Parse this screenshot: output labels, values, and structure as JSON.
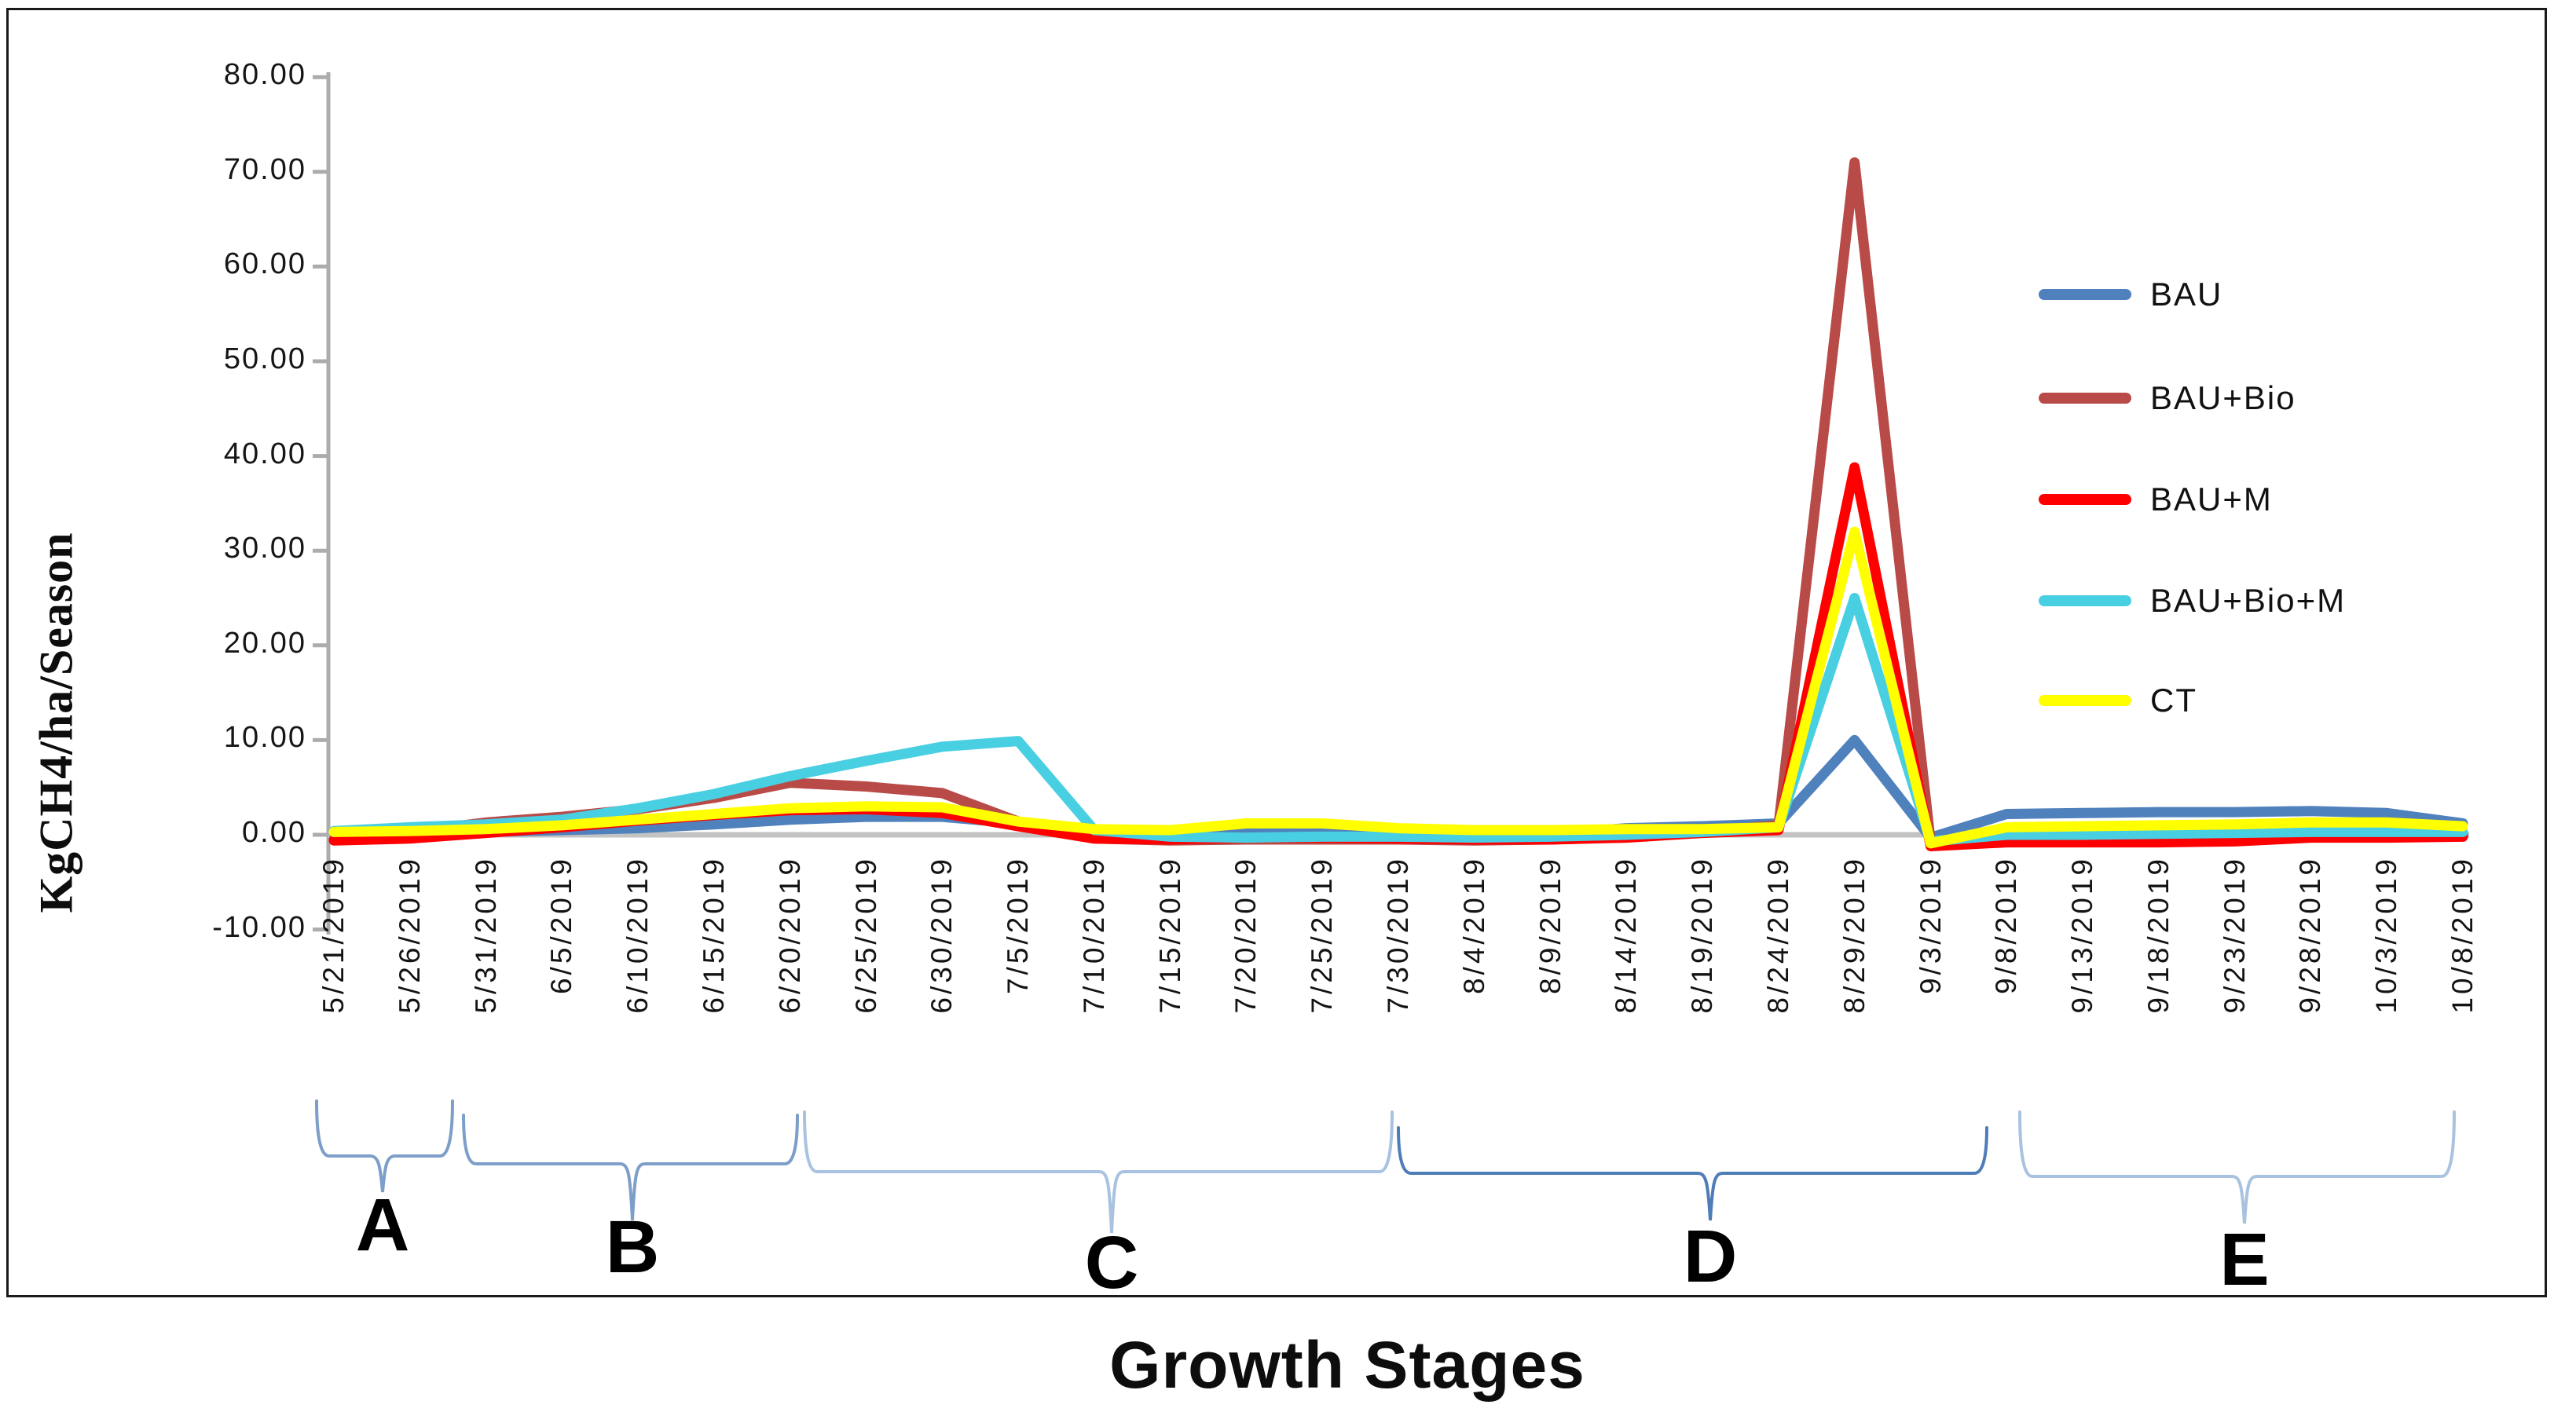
{
  "figure": {
    "x_axis_title": "Growth Stages",
    "y_axis_title": "KgCH4/ha/Season"
  },
  "chart_data": {
    "type": "line",
    "title": "",
    "xlabel": "Growth Stages",
    "ylabel": "KgCH4/ha/Season",
    "ylim": [
      -10,
      80
    ],
    "grid": false,
    "legend_position": "right",
    "ytick_values": [
      80,
      70,
      60,
      50,
      40,
      30,
      20,
      10,
      0,
      -10
    ],
    "ytick_labels": [
      "80.00",
      "70.00",
      "60.00",
      "50.00",
      "40.00",
      "30.00",
      "20.00",
      "10.00",
      "0.00",
      "-10.00"
    ],
    "categories": [
      "5/21/2019",
      "5/26/2019",
      "5/31/2019",
      "6/5/2019",
      "6/10/2019",
      "6/15/2019",
      "6/20/2019",
      "6/25/2019",
      "6/30/2019",
      "7/5/2019",
      "7/10/2019",
      "7/15/2019",
      "7/20/2019",
      "7/25/2019",
      "7/30/2019",
      "8/4/2019",
      "8/9/2019",
      "8/14/2019",
      "8/19/2019",
      "8/24/2019",
      "8/29/2019",
      "9/3/2019",
      "9/8/2019",
      "9/13/2019",
      "9/18/2019",
      "9/23/2019",
      "9/28/2019",
      "10/3/2019",
      "10/8/2019"
    ],
    "series": [
      {
        "name": "BAU",
        "color": "#4F81BD",
        "values": [
          0.2,
          0.2,
          0.3,
          0.5,
          0.7,
          1.1,
          1.6,
          1.9,
          1.9,
          1.2,
          0.2,
          0.1,
          0.3,
          0.4,
          0.2,
          0.1,
          0.1,
          0.7,
          0.9,
          1.2,
          10.0,
          -0.3,
          2.2,
          2.3,
          2.4,
          2.4,
          2.5,
          2.3,
          1.2
        ]
      },
      {
        "name": "BAU+Bio",
        "color": "#B84B47",
        "values": [
          -0.5,
          0.3,
          1.3,
          1.9,
          2.7,
          3.9,
          5.5,
          5.1,
          4.4,
          1.4,
          -0.4,
          -0.6,
          -0.5,
          -0.5,
          -0.5,
          -0.6,
          -0.5,
          -0.2,
          0.3,
          1.0,
          71.0,
          -0.8,
          -0.3,
          -0.2,
          -0.2,
          0.2,
          0.4,
          0.3,
          0.1
        ]
      },
      {
        "name": "BAU+M",
        "color": "#FF0000",
        "values": [
          -0.6,
          -0.4,
          0.2,
          0.8,
          1.5,
          2.1,
          2.6,
          2.7,
          2.3,
          0.9,
          -0.4,
          -0.5,
          -0.3,
          -0.3,
          -0.4,
          -0.5,
          -0.5,
          -0.3,
          0.2,
          0.5,
          38.8,
          -1.2,
          -0.8,
          -0.8,
          -0.8,
          -0.7,
          -0.3,
          -0.3,
          -0.2
        ]
      },
      {
        "name": "BAU+Bio+M",
        "color": "#49CFE2",
        "values": [
          0.4,
          0.8,
          1.1,
          1.6,
          2.8,
          4.3,
          6.2,
          7.8,
          9.3,
          9.9,
          0.5,
          -0.2,
          -0.3,
          -0.2,
          -0.2,
          -0.3,
          -0.2,
          0.0,
          0.3,
          0.8,
          25.0,
          -0.7,
          0.0,
          0.0,
          0.1,
          0.2,
          0.3,
          0.3,
          0.3
        ]
      },
      {
        "name": "CT",
        "color": "#FFFF00",
        "values": [
          0.3,
          0.4,
          0.6,
          1.0,
          1.6,
          2.2,
          2.8,
          3.0,
          2.9,
          1.4,
          0.6,
          0.5,
          1.2,
          1.2,
          0.7,
          0.5,
          0.5,
          0.6,
          0.6,
          0.8,
          32.0,
          -0.9,
          0.8,
          0.9,
          1.0,
          1.1,
          1.3,
          1.3,
          0.9
        ]
      }
    ],
    "stage_braces": [
      {
        "label": "A",
        "color": "#7D9EC9"
      },
      {
        "label": "B",
        "color": "#7D9EC9"
      },
      {
        "label": "C",
        "color": "#A8C2E0"
      },
      {
        "label": "D",
        "color": "#4E7CB8"
      },
      {
        "label": "E",
        "color": "#A8C2E0"
      }
    ],
    "axis_color": "#BDBDBD",
    "tick_text_color": "#131313"
  }
}
